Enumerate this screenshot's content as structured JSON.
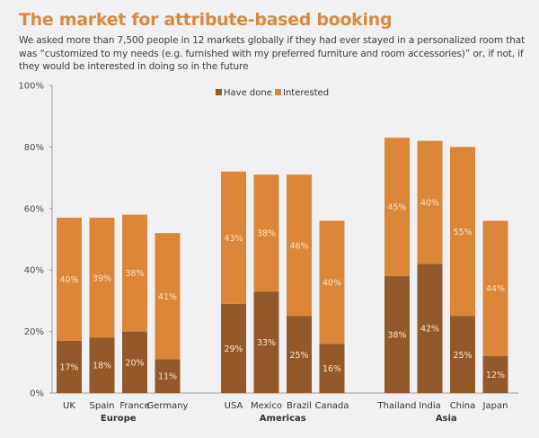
{
  "title": "The market for attribute-based booking",
  "subtitle": "We asked more than 7,500 people in 12 markets globally if they had ever stayed in a personalized room that was “customized to my needs (e.g. furnished with my preferred furniture and room accessories)” or, if not, if they would be interested in doing so in the future",
  "chart_data": {
    "type": "bar",
    "stacked": true,
    "title": "The market for attribute-based booking",
    "xlabel": "",
    "ylabel": "",
    "ylim": [
      0,
      100
    ],
    "yticks": [
      "0%",
      "20%",
      "40%",
      "60%",
      "80%",
      "100%"
    ],
    "ytick_values": [
      0,
      20,
      40,
      60,
      80,
      100
    ],
    "grid": false,
    "legend_position": "top-center",
    "categories": [
      "UK",
      "Spain",
      "France",
      "Germany",
      "USA",
      "Mexico",
      "Brazil",
      "Canada",
      "Thailand",
      "India",
      "China",
      "Japan"
    ],
    "groups": [
      {
        "name": "Europe",
        "categories": [
          "UK",
          "Spain",
          "France",
          "Germany"
        ]
      },
      {
        "name": "Americas",
        "categories": [
          "USA",
          "Mexico",
          "Brazil",
          "Canada"
        ]
      },
      {
        "name": "Asia",
        "categories": [
          "Thailand",
          "India",
          "China",
          "Japan"
        ]
      }
    ],
    "series": [
      {
        "name": "Have done",
        "color": "#93592a",
        "values": [
          17,
          18,
          20,
          11,
          29,
          33,
          25,
          16,
          38,
          42,
          25,
          12
        ]
      },
      {
        "name": "Interested",
        "color": "#db8639",
        "values": [
          40,
          39,
          38,
          41,
          43,
          38,
          46,
          40,
          45,
          40,
          55,
          44
        ]
      }
    ]
  }
}
